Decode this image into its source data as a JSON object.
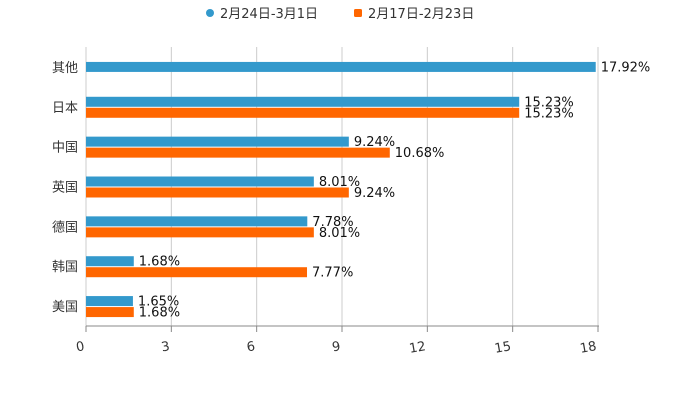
{
  "chart_data": {
    "type": "bar",
    "orientation": "horizontal",
    "categories": [
      "其他",
      "日本",
      "中国",
      "英国",
      "德国",
      "韩国",
      "美国"
    ],
    "series": [
      {
        "name": "2月24日-3月1日",
        "color": "#3399CC",
        "values": [
          17.92,
          15.23,
          9.24,
          8.01,
          7.78,
          1.68,
          1.65
        ],
        "labels": [
          "17.92%",
          "15.23%",
          "9.24%",
          "8.01%",
          "7.78%",
          "1.68%",
          "1.65%"
        ]
      },
      {
        "name": "2月17日-2月23日",
        "color": "#FF6600",
        "values": [
          null,
          15.23,
          10.68,
          9.24,
          8.01,
          7.77,
          1.68
        ],
        "labels": [
          null,
          "15.23%",
          "10.68%",
          "9.24%",
          "8.01%",
          "7.77%",
          "1.68%"
        ]
      }
    ],
    "xlim": [
      0,
      18
    ],
    "xticks": [
      0,
      3,
      6,
      9,
      12,
      15,
      18
    ],
    "xtick_labels": [
      "0",
      "3",
      "6",
      "9",
      "12",
      "15",
      "18"
    ],
    "grid": true,
    "legend_position": "top-center",
    "title": "",
    "xlabel": "",
    "ylabel": ""
  }
}
